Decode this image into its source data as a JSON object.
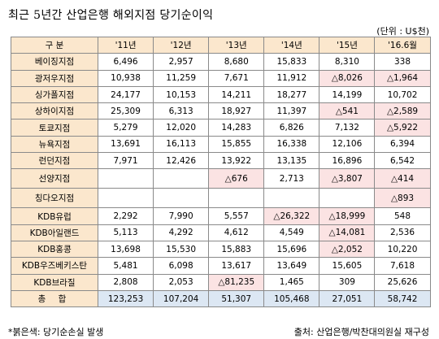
{
  "title": "최근 5년간 산업은행 해외지점 당기순이익",
  "unit": "(단위 : U$천)",
  "header": [
    "구  분",
    "'11년",
    "'12년",
    "'13년",
    "'14년",
    "'15년",
    "'16.6월"
  ],
  "rows": [
    {
      "name": "베이징지점",
      "values": [
        "6,496",
        "2,957",
        "8,680",
        "15,833",
        "8,310",
        "338"
      ],
      "loss": [
        false,
        false,
        false,
        false,
        false,
        false
      ]
    },
    {
      "name": "광저우지점",
      "values": [
        "10,938",
        "11,259",
        "7,671",
        "11,912",
        "△8,026",
        "△1,964"
      ],
      "loss": [
        false,
        false,
        false,
        false,
        true,
        true
      ]
    },
    {
      "name": "싱가폴지점",
      "values": [
        "24,177",
        "10,153",
        "14,211",
        "18,277",
        "14,199",
        "10,702"
      ],
      "loss": [
        false,
        false,
        false,
        false,
        false,
        false
      ]
    },
    {
      "name": "상하이지점",
      "values": [
        "25,309",
        "6,313",
        "18,927",
        "11,397",
        "△541",
        "△2,589"
      ],
      "loss": [
        false,
        false,
        false,
        false,
        true,
        true
      ]
    },
    {
      "name": "토쿄지점",
      "values": [
        "5,279",
        "12,020",
        "14,283",
        "6,826",
        "7,132",
        "△5,922"
      ],
      "loss": [
        false,
        false,
        false,
        false,
        false,
        true
      ]
    },
    {
      "name": "뉴욕지점",
      "values": [
        "13,691",
        "16,113",
        "15,855",
        "16,338",
        "12,106",
        "6,394"
      ],
      "loss": [
        false,
        false,
        false,
        false,
        false,
        false
      ]
    },
    {
      "name": "런던지점",
      "values": [
        "7,971",
        "12,426",
        "13,922",
        "13,135",
        "16,896",
        "6,542"
      ],
      "loss": [
        false,
        false,
        false,
        false,
        false,
        false
      ]
    },
    {
      "name": "선양지점",
      "values": [
        "",
        "",
        "△676",
        "2,713",
        "△3,807",
        "△414"
      ],
      "loss": [
        false,
        false,
        true,
        false,
        true,
        true
      ]
    },
    {
      "name": "칭다오지점",
      "values": [
        "",
        "",
        "",
        "",
        "",
        "△893"
      ],
      "loss": [
        false,
        false,
        false,
        false,
        false,
        true
      ]
    },
    {
      "name": "KDB유럽",
      "values": [
        "2,292",
        "7,990",
        "5,557",
        "△26,322",
        "△18,999",
        "548"
      ],
      "loss": [
        false,
        false,
        false,
        true,
        true,
        false
      ]
    },
    {
      "name": "KDB아일랜드",
      "values": [
        "5,113",
        "4,292",
        "4,612",
        "4,549",
        "△14,081",
        "2,536"
      ],
      "loss": [
        false,
        false,
        false,
        false,
        true,
        false
      ]
    },
    {
      "name": "KDB홍콩",
      "values": [
        "13,698",
        "15,530",
        "15,883",
        "15,696",
        "△2,052",
        "10,220"
      ],
      "loss": [
        false,
        false,
        false,
        false,
        true,
        false
      ]
    },
    {
      "name": "KDB우즈베키스탄",
      "values": [
        "5,481",
        "6,098",
        "13,617",
        "13,649",
        "15,605",
        "7,618"
      ],
      "loss": [
        false,
        false,
        false,
        false,
        false,
        false
      ]
    },
    {
      "name": "KDB브라질",
      "values": [
        "2,808",
        "2,053",
        "△81,235",
        "1,465",
        "309",
        "25,626"
      ],
      "loss": [
        false,
        false,
        true,
        false,
        false,
        false
      ]
    }
  ],
  "total": {
    "name": "총 합",
    "values": [
      "123,253",
      "107,204",
      "51,307",
      "105,468",
      "27,051",
      "58,742"
    ]
  },
  "footnote": "*붉은색: 당기순손실 발생",
  "source": "출처: 산업은행/박찬대의원실 재구성",
  "colors": {
    "header_bg": "#fbe7cd",
    "loss_bg": "#fbe3e3",
    "total_bg": "#dce7f3",
    "border": "#8a8a8a"
  }
}
